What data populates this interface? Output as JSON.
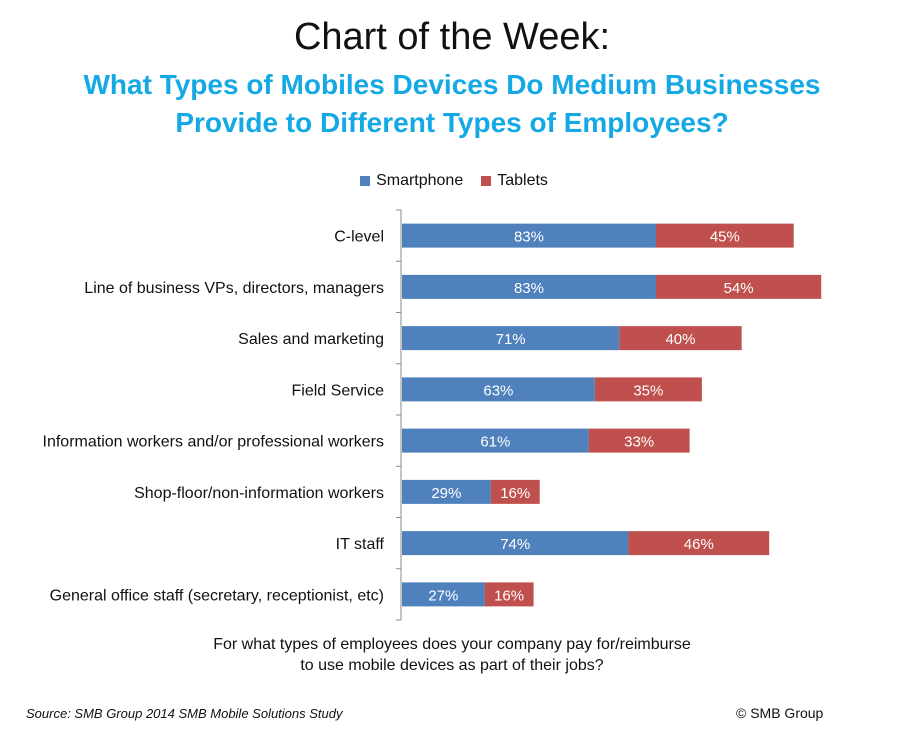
{
  "header": {
    "title": "Chart of the Week:",
    "subtitle_line1": "What Types of Mobiles Devices Do Medium Businesses",
    "subtitle_line2": "Provide to Different Types of Employees?"
  },
  "footer": {
    "question_line1": "For what types of employees does your company pay for/reimburse",
    "question_line2": "to use mobile devices as part of their jobs?",
    "source": "Source: SMB Group 2014 SMB Mobile Solutions Study",
    "copyright": "© SMB Group"
  },
  "colors": {
    "subtitle": "#14a9e4",
    "smartphone": "#4f81bd",
    "tablets": "#c0504d",
    "bar_label": "#ffffff"
  },
  "chart_data": {
    "type": "bar",
    "orientation": "horizontal",
    "stacked": true,
    "categories": [
      "C-level",
      "Line of business VPs, directors, managers",
      "Sales and marketing",
      "Field Service",
      "Information workers and/or professional workers",
      "Shop-floor/non-information workers",
      "IT staff",
      "General office staff (secretary, receptionist, etc)"
    ],
    "series": [
      {
        "name": "Smartphone",
        "values": [
          83,
          83,
          71,
          63,
          61,
          29,
          74,
          27
        ]
      },
      {
        "name": "Tablets",
        "values": [
          45,
          54,
          40,
          35,
          33,
          16,
          46,
          16
        ]
      }
    ],
    "value_suffix": "%",
    "legend": "top",
    "grid": false
  }
}
